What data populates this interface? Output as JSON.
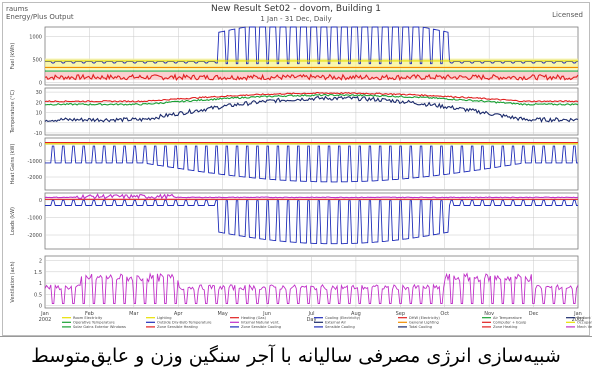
{
  "header": {
    "left_line1": "raums",
    "left_line2": "Energy/Plus Output",
    "title": "New Result Set02 - dovom, Building 1",
    "subtitle": "1 Jan - 31 Dec, Daily",
    "right": "Licensed"
  },
  "caption": "شبیه‌سازی انرژی مصرفی سالیانه با آجر سنگین وزن و عایق‌متوسط",
  "colors": {
    "yellow": "#e8e000",
    "green": "#1aa034",
    "red": "#e02020",
    "blue": "#1f2db8",
    "navy": "#1b2a6b",
    "purple": "#c030c8",
    "orange": "#f08c00",
    "grid": "#c8c8c8",
    "panel_border": "#7a7a7a",
    "band_yellow": "#f7f28a",
    "band_red": "#f6a8a8"
  },
  "chart_data": [
    {
      "type": "line",
      "ylabel": "Fuel (kWh)",
      "ylim": [
        -50,
        1200
      ],
      "yticks": [
        0,
        500,
        1000
      ],
      "x_start_month": 0,
      "x_end_month": 12,
      "series": [
        {
          "color_key": "blue",
          "shape": "cooling_pulse",
          "base": 430,
          "amp_peak": 700,
          "active": [
            3.9,
            9.1
          ]
        },
        {
          "color_key": "red",
          "shape": "flat_noise",
          "base": 95,
          "noise": 55
        },
        {
          "color_key": "orange",
          "shape": "flat",
          "base": 330
        },
        {
          "color_key": "yellow",
          "shape": "flat",
          "base": 470
        },
        {
          "color_key": "green",
          "shape": "flat",
          "base": 250
        }
      ]
    },
    {
      "type": "line",
      "ylabel": "Temperature (°C)",
      "ylim": [
        -12,
        34
      ],
      "yticks": [
        -10,
        0,
        10,
        20,
        30
      ],
      "x_start_month": 0,
      "x_end_month": 12,
      "series": [
        {
          "color_key": "navy",
          "shape": "seasonal",
          "winter": 3,
          "summer": 24,
          "noise": 4
        },
        {
          "color_key": "green",
          "shape": "seasonal",
          "winter": 18,
          "summer": 27,
          "noise": 1.5
        },
        {
          "color_key": "red",
          "shape": "seasonal",
          "winter": 21,
          "summer": 29,
          "noise": 1.2
        }
      ]
    },
    {
      "type": "line",
      "ylabel": "Heat Gains (kW)",
      "ylim": [
        -2800,
        400
      ],
      "yticks": [
        -2000,
        -1000,
        0
      ],
      "x_start_month": 0,
      "x_end_month": 12,
      "series": [
        {
          "color_key": "red",
          "shape": "flat",
          "base": 120
        },
        {
          "color_key": "yellow",
          "shape": "flat",
          "base": 40
        },
        {
          "color_key": "blue",
          "shape": "neg_pulse",
          "base": -500,
          "amp_peak": 1800,
          "active": [
            0,
            12
          ],
          "summer_boost": true
        }
      ]
    },
    {
      "type": "line",
      "ylabel": "Loads (kW)",
      "ylim": [
        -2800,
        400
      ],
      "yticks": [
        -2000,
        -1000,
        0
      ],
      "x_start_month": 0,
      "x_end_month": 12,
      "series": [
        {
          "color_key": "red",
          "shape": "flat",
          "base": 40
        },
        {
          "color_key": "purple",
          "shape": "flat_noise",
          "base": 150,
          "noise": 120,
          "active": [
            0.7,
            2.9
          ]
        },
        {
          "color_key": "blue",
          "shape": "neg_pulse",
          "base": -200,
          "amp_peak": 2300,
          "active": [
            3.9,
            9.1
          ]
        }
      ]
    },
    {
      "type": "line",
      "ylabel": "Ventilation (ach)",
      "ylim": [
        -0.1,
        2.2
      ],
      "yticks": [
        0,
        0.5,
        1,
        1.5,
        2
      ],
      "x_start_month": 0,
      "x_end_month": 12,
      "xticks": [
        "Jan\n2002",
        "Feb",
        "Mar",
        "Apr",
        "May",
        "Jun",
        "Jul\nDay",
        "Aug",
        "Sep",
        "Oct",
        "Nov",
        "Dec",
        "Jan\n2002"
      ],
      "series": [
        {
          "color_key": "purple",
          "shape": "vent",
          "base": 0.1,
          "amp": 0.75,
          "boost_ranges": [
            [
              0.8,
              3.0
            ],
            [
              9.0,
              11.0
            ]
          ]
        }
      ]
    }
  ],
  "legend": [
    {
      "label": "Room Electricity",
      "color_key": "yellow"
    },
    {
      "label": "Lighting",
      "color_key": "yellow"
    },
    {
      "label": "Heating (Gas)",
      "color_key": "red"
    },
    {
      "label": "Cooling (Electricity)",
      "color_key": "blue"
    },
    {
      "label": "DHW (Electricity)",
      "color_key": "red"
    },
    {
      "label": "Air Temperature",
      "color_key": "green"
    },
    {
      "label": "Radiant Temperature",
      "color_key": "navy"
    },
    {
      "label": "Operative Temperature",
      "color_key": "green"
    },
    {
      "label": "Outside Dry-Bulb Temperature",
      "color_key": "blue"
    },
    {
      "label": "Internal Natural vent.",
      "color_key": "purple"
    },
    {
      "label": "External Air",
      "color_key": "navy"
    },
    {
      "label": "General Lighting",
      "color_key": "orange"
    },
    {
      "label": "Computer + Equip",
      "color_key": "red"
    },
    {
      "label": "Occupancy",
      "color_key": "yellow"
    },
    {
      "label": "Solar Gains Exterior Windows",
      "color_key": "green"
    },
    {
      "label": "Zone Sensible Heating",
      "color_key": "red"
    },
    {
      "label": "Zone Sensible Cooling",
      "color_key": "blue"
    },
    {
      "label": "Sensible Cooling",
      "color_key": "blue"
    },
    {
      "label": "Total Cooling",
      "color_key": "navy"
    },
    {
      "label": "Zone Heating",
      "color_key": "red"
    },
    {
      "label": "Mech Vent + Nat Vent + Infiltration",
      "color_key": "purple"
    }
  ]
}
